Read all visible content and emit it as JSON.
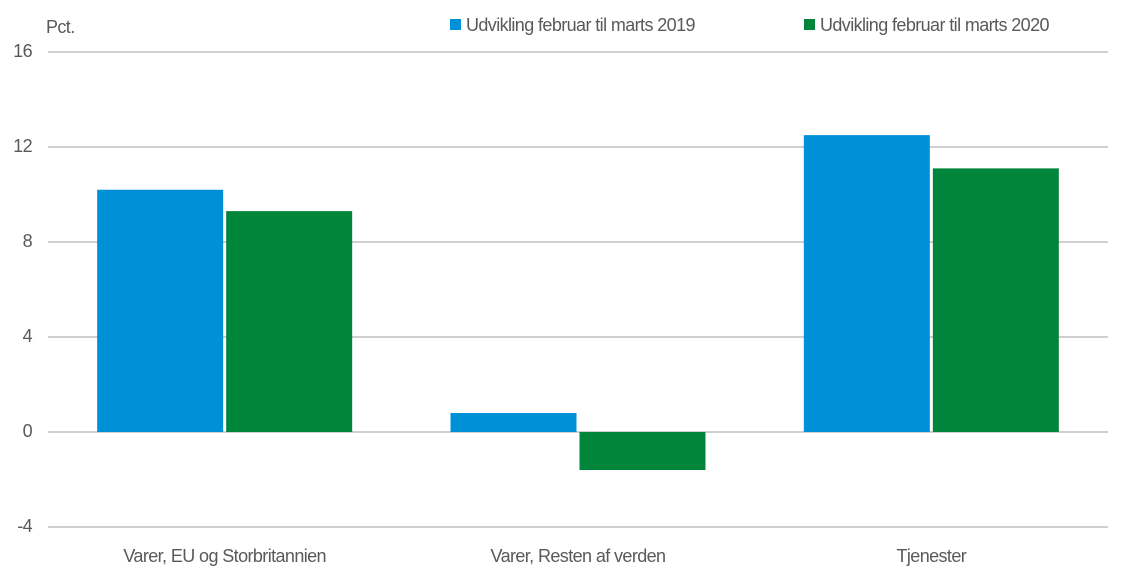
{
  "chart_data": {
    "type": "bar",
    "y_label": "Pct.",
    "categories": [
      "Varer, EU og Storbritannien",
      "Varer, Resten af verden",
      "Tjenester"
    ],
    "series": [
      {
        "name": "Udvikling februar til marts 2019",
        "color": "#0090d8",
        "values": [
          10.2,
          0.8,
          12.5
        ]
      },
      {
        "name": "Udvikling februar til marts 2020",
        "color": "#00853b",
        "values": [
          9.3,
          -1.6,
          11.1
        ]
      }
    ],
    "ylim": [
      -4,
      16
    ],
    "yticks": [
      -4,
      0,
      4,
      8,
      12,
      16
    ],
    "grid": true,
    "legend": "top-right"
  }
}
